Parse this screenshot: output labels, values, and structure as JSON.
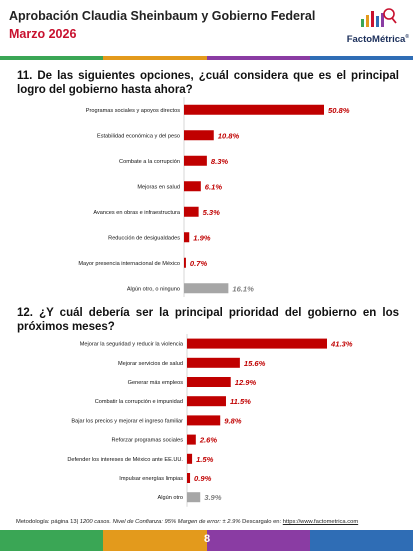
{
  "header": {
    "title": "Aprobación Claudia Sheinbaum y Gobierno Federal",
    "subtitle": "Marzo 2026",
    "logo_text": "FactoMétrica",
    "logo_mark": "®"
  },
  "colors": {
    "bar_primary": "#c00000",
    "bar_secondary": "#a6a6a6",
    "value_primary": "#c00000",
    "value_secondary": "#7f7f7f",
    "stripe": [
      "#3aa655",
      "#e39a1c",
      "#8a3ca3",
      "#2f6db5"
    ]
  },
  "chart_data": [
    {
      "type": "bar",
      "orientation": "horizontal",
      "title": "11. De las siguientes opciones, ¿cuál considera que es el principal logro del gobierno hasta ahora?",
      "categories": [
        "Programas sociales y apoyos directos",
        "Estabilidad económica y del peso",
        "Combate a la corrupción",
        "Mejoras en salud",
        "Avances en obras e infraestructura",
        "Reducción de desigualdades",
        "Mayor presencia internacional de México",
        "Algún otro, o ninguno"
      ],
      "values": [
        50.8,
        10.8,
        8.3,
        6.1,
        5.3,
        1.9,
        0.7,
        16.1
      ],
      "value_labels": [
        "50.8%",
        "10.8%",
        "8.3%",
        "6.1%",
        "5.3%",
        "1.9%",
        "0.7%",
        "16.1%"
      ],
      "unit": "%",
      "highlight_last": true,
      "xlim": [
        0,
        55
      ]
    },
    {
      "type": "bar",
      "orientation": "horizontal",
      "title": "12. ¿Y cuál debería ser la principal prioridad del gobierno en los próximos meses?",
      "categories": [
        "Mejorar la seguridad y reducir la violencia",
        "Mejorar servicios de salud",
        "Generar más empleos",
        "Combatir la corrupción e impunidad",
        "Bajar los precios y mejorar el ingreso familiar",
        "Reforzar programas sociales",
        "Defender los intereses de México ante EE.UU.",
        "Impulsar energías limpias",
        "Algún otro"
      ],
      "values": [
        41.3,
        15.6,
        12.9,
        11.5,
        9.8,
        2.6,
        1.5,
        0.9,
        3.9
      ],
      "value_labels": [
        "41.3%",
        "15.6%",
        "12.9%",
        "11.5%",
        "9.8%",
        "2.6%",
        "1.5%",
        "0.9%",
        "3.9%"
      ],
      "unit": "%",
      "highlight_last": true,
      "xlim": [
        0,
        45
      ]
    }
  ],
  "footer": {
    "methodology": "Metodología: página 13|",
    "sample": "1200 casos.",
    "confidence": "Nivel de Confianza: 95%",
    "error": "Margen de error: ± 2.9%",
    "download_label": "Descargalo en:",
    "url": "https://www.factometrica.com"
  },
  "page_number": "8"
}
